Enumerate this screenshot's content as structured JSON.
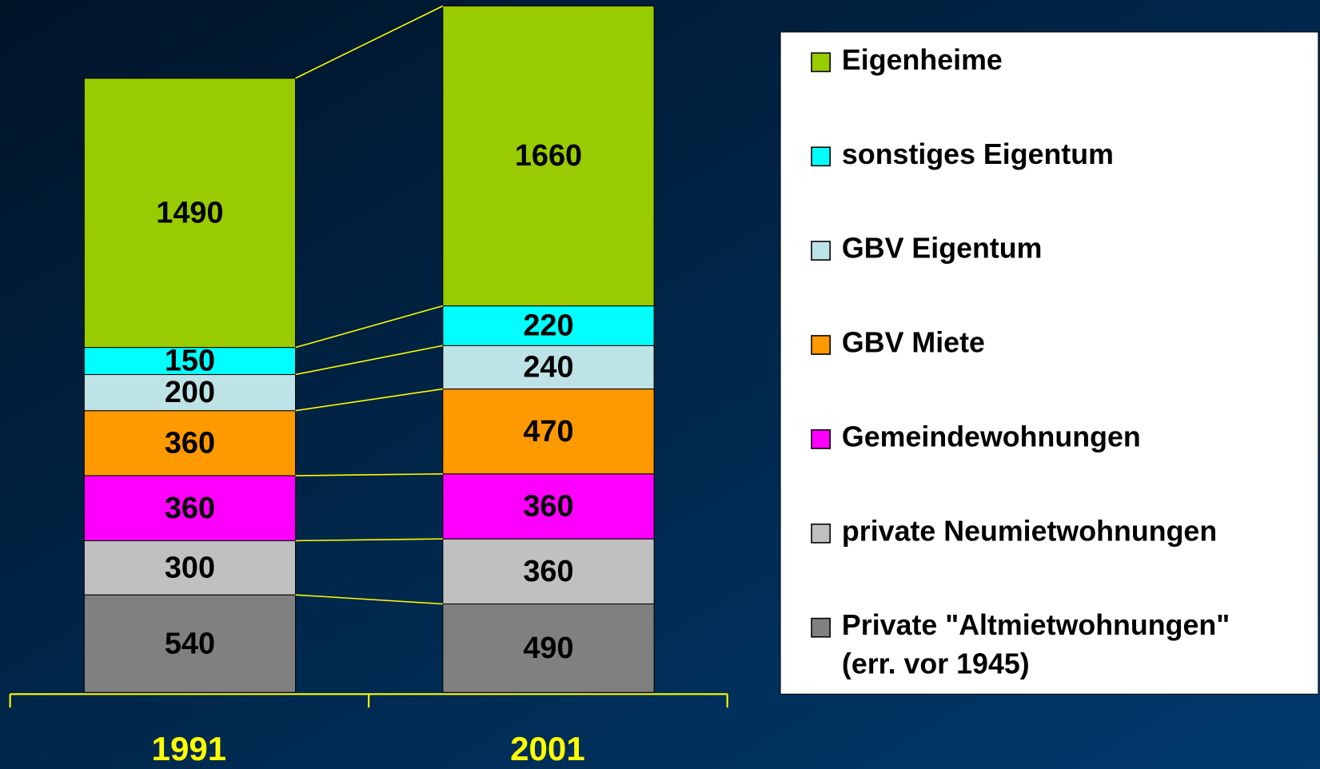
{
  "chart_data": {
    "type": "stacked_bar",
    "categories": [
      "1991",
      "2001"
    ],
    "series": [
      {
        "name": "Private \"Altmietwohnungen\"\n(err. vor 1945)",
        "color": "#808080",
        "values": [
          540,
          490
        ]
      },
      {
        "name": "private Neumietwohnungen",
        "color": "#c0c0c0",
        "values": [
          300,
          360
        ]
      },
      {
        "name": "Gemeindewohnungen",
        "color": "#ff00ff",
        "values": [
          360,
          360
        ]
      },
      {
        "name": "GBV Miete",
        "color": "#ff9900",
        "values": [
          360,
          470
        ]
      },
      {
        "name": "GBV Eigentum",
        "color": "#bde3e6",
        "values": [
          200,
          240
        ]
      },
      {
        "name": "sonstiges Eigentum",
        "color": "#00ffff",
        "values": [
          150,
          220
        ]
      },
      {
        "name": "Eigenheime",
        "color": "#99cc00",
        "values": [
          1490,
          1660
        ]
      }
    ]
  }
}
